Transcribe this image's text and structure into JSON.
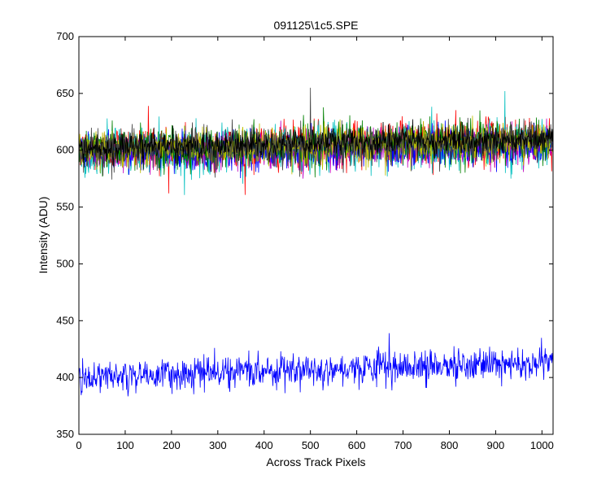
{
  "chart_data": {
    "type": "line",
    "title": "091125\\1c5.SPE",
    "xlabel": "Across Track Pixels",
    "ylabel": "Intensity (ADU)",
    "xlim": [
      0,
      1024
    ],
    "ylim": [
      350,
      700
    ],
    "xticks": [
      0,
      100,
      200,
      300,
      400,
      500,
      600,
      700,
      800,
      900,
      1000
    ],
    "yticks": [
      350,
      400,
      450,
      500,
      550,
      600,
      650,
      700
    ],
    "grid": false,
    "legend": "none",
    "series_colors": [
      "#ff0000",
      "#00bfbf",
      "#bf00bf",
      "#0000ff",
      "#008000",
      "#bfbf00",
      "#404040",
      "#000000"
    ],
    "series": [
      {
        "color": "#ff0000",
        "points": [
          [
            0,
            598
          ],
          [
            128,
            604
          ],
          [
            256,
            601
          ],
          [
            384,
            603
          ],
          [
            512,
            604
          ],
          [
            640,
            606
          ],
          [
            768,
            607
          ],
          [
            896,
            608
          ],
          [
            1024,
            609
          ]
        ],
        "noise": 10,
        "peak": [
          150,
          639
        ]
      },
      {
        "color": "#00bfbf",
        "points": [
          [
            0,
            596
          ],
          [
            128,
            600
          ],
          [
            256,
            599
          ],
          [
            384,
            601
          ],
          [
            512,
            602
          ],
          [
            640,
            603
          ],
          [
            768,
            604
          ],
          [
            896,
            606
          ],
          [
            1024,
            607
          ]
        ],
        "noise": 10,
        "peak": [
          920,
          652
        ]
      },
      {
        "color": "#bf00bf",
        "points": [
          [
            0,
            597
          ],
          [
            128,
            600
          ],
          [
            256,
            599
          ],
          [
            384,
            600
          ],
          [
            512,
            601
          ],
          [
            640,
            602
          ],
          [
            768,
            603
          ],
          [
            896,
            604
          ],
          [
            1024,
            605
          ]
        ],
        "noise": 8
      },
      {
        "color": "#0000ff",
        "points": [
          [
            0,
            597
          ],
          [
            128,
            600
          ],
          [
            256,
            598
          ],
          [
            384,
            600
          ],
          [
            512,
            601
          ],
          [
            640,
            602
          ],
          [
            768,
            603
          ],
          [
            896,
            604
          ],
          [
            1024,
            605
          ]
        ],
        "noise": 8
      },
      {
        "color": "#008000",
        "points": [
          [
            0,
            599
          ],
          [
            128,
            603
          ],
          [
            256,
            602
          ],
          [
            384,
            604
          ],
          [
            512,
            605
          ],
          [
            640,
            606
          ],
          [
            768,
            607
          ],
          [
            896,
            608
          ],
          [
            1024,
            609
          ]
        ],
        "noise": 9
      },
      {
        "color": "#bfbf00",
        "points": [
          [
            0,
            598
          ],
          [
            128,
            602
          ],
          [
            256,
            601
          ],
          [
            384,
            603
          ],
          [
            512,
            604
          ],
          [
            640,
            605
          ],
          [
            768,
            606
          ],
          [
            896,
            607
          ],
          [
            1024,
            608
          ]
        ],
        "noise": 8
      },
      {
        "color": "#404040",
        "points": [
          [
            0,
            600
          ],
          [
            128,
            603
          ],
          [
            256,
            602
          ],
          [
            384,
            604
          ],
          [
            512,
            605
          ],
          [
            640,
            606
          ],
          [
            768,
            607
          ],
          [
            896,
            608
          ],
          [
            1024,
            609
          ]
        ],
        "noise": 8,
        "peak": [
          500,
          655
        ]
      },
      {
        "color": "#000000",
        "points": [
          [
            0,
            601
          ],
          [
            128,
            604
          ],
          [
            256,
            603
          ],
          [
            384,
            605
          ],
          [
            512,
            606
          ],
          [
            640,
            607
          ],
          [
            768,
            608
          ],
          [
            896,
            609
          ],
          [
            1024,
            610
          ]
        ],
        "noise": 6
      },
      {
        "color": "#0000ff",
        "points": [
          [
            0,
            400
          ],
          [
            128,
            402
          ],
          [
            256,
            404
          ],
          [
            384,
            406
          ],
          [
            512,
            408
          ],
          [
            640,
            409
          ],
          [
            768,
            410
          ],
          [
            896,
            411
          ],
          [
            1024,
            412
          ]
        ],
        "noise": 7,
        "peak": [
          670,
          439
        ]
      }
    ]
  }
}
